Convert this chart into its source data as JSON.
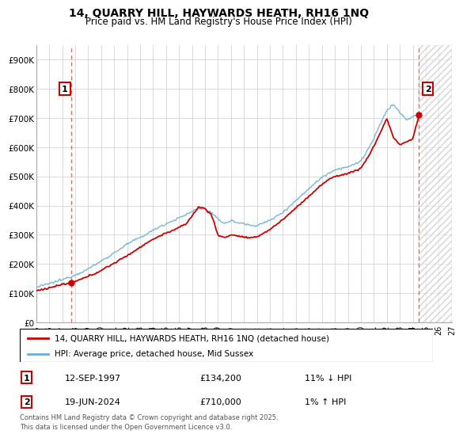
{
  "title": "14, QUARRY HILL, HAYWARDS HEATH, RH16 1NQ",
  "subtitle": "Price paid vs. HM Land Registry's House Price Index (HPI)",
  "xlim_years": [
    1995,
    2027
  ],
  "ylim": [
    0,
    950000
  ],
  "yticks": [
    0,
    100000,
    200000,
    300000,
    400000,
    500000,
    600000,
    700000,
    800000,
    900000
  ],
  "ytick_labels": [
    "£0",
    "£100K",
    "£200K",
    "£300K",
    "£400K",
    "£500K",
    "£600K",
    "£700K",
    "£800K",
    "£900K"
  ],
  "xticks": [
    1995,
    1996,
    1997,
    1998,
    1999,
    2000,
    2001,
    2002,
    2003,
    2004,
    2005,
    2006,
    2007,
    2008,
    2009,
    2010,
    2011,
    2012,
    2013,
    2014,
    2015,
    2016,
    2017,
    2018,
    2019,
    2020,
    2021,
    2022,
    2023,
    2024,
    2025,
    2026,
    2027
  ],
  "hpi_color": "#6baed6",
  "price_color": "#cc0000",
  "marker1_x": 1997.71,
  "marker1_y": 134200,
  "marker1_label": "1",
  "marker2_x": 2024.47,
  "marker2_y": 710000,
  "marker2_label": "2",
  "legend_label1": "14, QUARRY HILL, HAYWARDS HEATH, RH16 1NQ (detached house)",
  "legend_label2": "HPI: Average price, detached house, Mid Sussex",
  "table_row1": [
    "1",
    "12-SEP-1997",
    "£134,200",
    "11% ↓ HPI"
  ],
  "table_row2": [
    "2",
    "19-JUN-2024",
    "£710,000",
    "1% ↑ HPI"
  ],
  "footer": "Contains HM Land Registry data © Crown copyright and database right 2025.\nThis data is licensed under the Open Government Licence v3.0.",
  "bg_color": "#ffffff",
  "grid_color": "#cccccc",
  "vline_color": "#e05050",
  "hatch_start": 2024.47,
  "hatch_color": "#c8c8c8"
}
